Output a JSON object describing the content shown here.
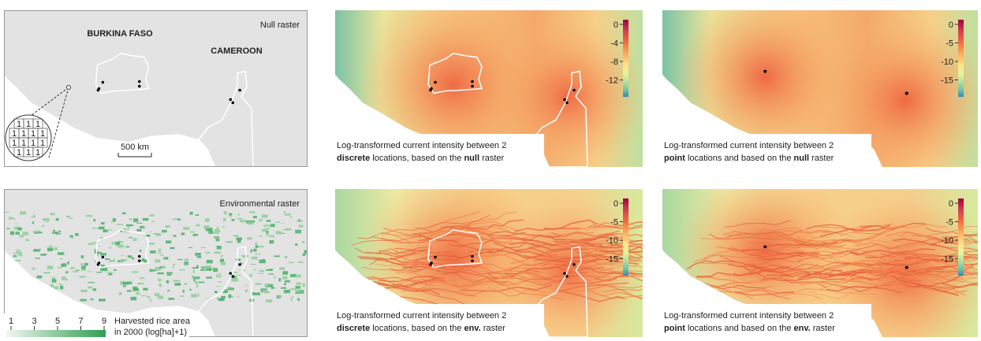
{
  "panels": [
    {
      "title": "Null raster",
      "countries": [
        "BURKINA FASO",
        "CAMEROON"
      ],
      "grid": [
        [
          1,
          1,
          1
        ],
        [
          1,
          1,
          1,
          1
        ],
        [
          1,
          1,
          1,
          1
        ],
        [
          1,
          1,
          1
        ]
      ],
      "scale": "500 km"
    },
    {
      "caption": {
        "line1": "Log-transformed current intensity between 2",
        "line2": [
          {
            "b": "discrete"
          },
          {
            "t": " locations, based on the "
          },
          {
            "b": "null"
          },
          {
            "t": " raster"
          }
        ]
      },
      "colorbar": [
        0,
        -4,
        -8,
        -12
      ]
    },
    {
      "caption": {
        "line1": "Log-transformed current intensity between 2",
        "line2": [
          {
            "b": "point"
          },
          {
            "t": " locations and based on the "
          },
          {
            "b": "null"
          },
          {
            "t": " raster"
          }
        ]
      },
      "colorbar": [
        0,
        -5,
        -10,
        -15
      ]
    },
    {
      "title": "Environmental raster",
      "legend": {
        "ticks": [
          1,
          3,
          5,
          7,
          9
        ],
        "line1": "Harvested rice area",
        "line2": "in 2000 (log[ha]+1)"
      }
    },
    {
      "caption": {
        "line1": "Log-transformed current intensity between 2",
        "line2": [
          {
            "b": "discrete"
          },
          {
            "t": " locations, based on the "
          },
          {
            "b": "env."
          },
          {
            "t": " raster"
          }
        ]
      },
      "colorbar": [
        0,
        -5,
        -10,
        -15
      ]
    },
    {
      "caption": {
        "line1": "Log-transformed current intensity between 2",
        "line2": [
          {
            "b": "point"
          },
          {
            "t": " locations and based on the "
          },
          {
            "b": "env."
          },
          {
            "t": " raster"
          }
        ]
      },
      "colorbar": [
        0,
        -5,
        -10,
        -15
      ]
    }
  ]
}
